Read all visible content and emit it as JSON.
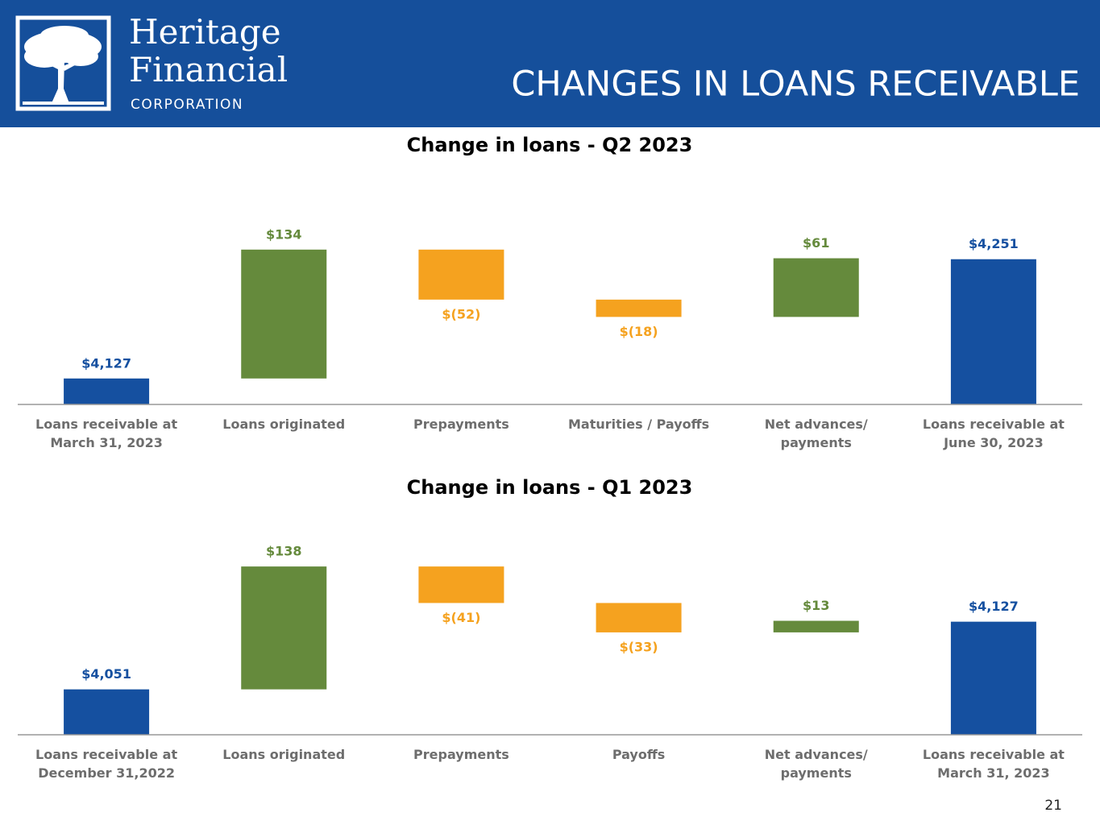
{
  "header": {
    "logo_line1": "Heritage",
    "logo_line2": "Financial",
    "logo_line3": "CORPORATION",
    "title": "CHANGES IN LOANS RECEIVABLE"
  },
  "page_number": 21,
  "chart_data": [
    {
      "type": "waterfall",
      "title": "Change in loans - Q2 2023",
      "categories": [
        "Loans receivable at\nMarch 31, 2023",
        "Loans originated",
        "Prepayments",
        "Maturities / Payoffs",
        "Net advances/\npayments",
        "Loans receivable at\nJune 30, 2023"
      ],
      "values": [
        4127,
        134,
        -52,
        -18,
        61,
        4251
      ],
      "value_labels": [
        "$4,127",
        "$134",
        "$(52)",
        "$(18)",
        "$61",
        "$4,251"
      ],
      "colors": {
        "total": "#1550a0",
        "increase": "#658a3c",
        "decrease": "#f5a21f"
      },
      "ylim": [
        4100,
        4260
      ]
    },
    {
      "type": "waterfall",
      "title": "Change in loans - Q1 2023",
      "categories": [
        "Loans receivable at\nDecember 31,2022",
        "Loans originated",
        "Prepayments",
        "Payoffs",
        "Net advances/\npayments",
        "Loans receivable at\nMarch 31, 2023"
      ],
      "values": [
        4051,
        138,
        -41,
        -33,
        13,
        4127
      ],
      "value_labels": [
        "$4,051",
        "$138",
        "$(41)",
        "$(33)",
        "$13",
        "$4,127"
      ],
      "colors": {
        "total": "#1550a0",
        "increase": "#658a3c",
        "decrease": "#f5a21f"
      },
      "ylim": [
        4000,
        4195
      ]
    }
  ]
}
